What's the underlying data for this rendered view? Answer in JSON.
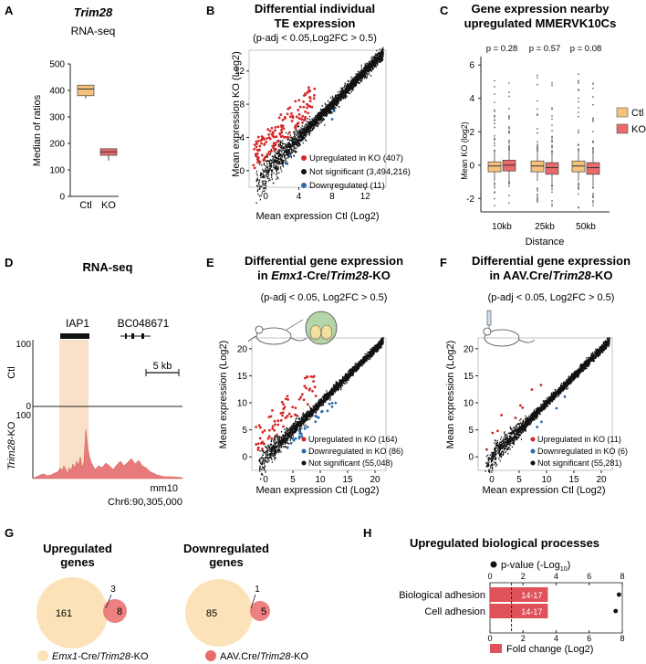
{
  "panel_labels": [
    "A",
    "B",
    "C",
    "D",
    "E",
    "F",
    "G",
    "H"
  ],
  "panelA": {
    "title": "Trim28",
    "subtitle": "RNA-seq",
    "ylabel": "Median of ratios",
    "yticks": [
      "0",
      "100",
      "200",
      "300",
      "400",
      "500"
    ],
    "categories": [
      "Ctl",
      "KO"
    ]
  },
  "panelB": {
    "title1": "Differential individual",
    "title2": "TE expression",
    "subtitle": "(p-adj < 0.05,Log2FC > 0.5)",
    "xlabel": "Mean expression Ctl (Log2)",
    "ylabel": "Mean expression KO (Log2)",
    "xticks": [
      "0",
      "4",
      "8",
      "12"
    ],
    "yticks": [
      "0",
      "4",
      "8",
      "12"
    ],
    "legend": [
      "Upregulated in KO (407)",
      "Not significant (3,494,216)",
      "Downregulated (11)"
    ]
  },
  "panelC": {
    "title1": "Gene expression nearby",
    "title2": "upregulated MMERVK10Cs",
    "pvalues": [
      "p = 0.28",
      "p = 0.57",
      "p = 0.08"
    ],
    "xlabel": "Distance",
    "ylabel": "Mean KO (log2)",
    "xticks": [
      "10kb",
      "25kb",
      "50kb"
    ],
    "yticks": [
      "6",
      "4",
      "2",
      "0",
      "-2"
    ],
    "legend": [
      "Ctl",
      "KO"
    ]
  },
  "panelD": {
    "title": "RNA-seq",
    "gene1": "IAP1",
    "gene2": "BC048671",
    "scale": "5 kb",
    "track_max": "100",
    "track_min": "0",
    "track1": "Ctl",
    "track2_italic": "Trim28",
    "track2_suffix": "-KO",
    "genome": "mm10",
    "coord": "Chr6:90,305,000"
  },
  "panelE": {
    "title1": "Differential gene expression",
    "title2_pre": "in ",
    "title2_it1": "Emx1",
    "title2_mid": "-Cre/",
    "title2_it2": "Trim28",
    "title2_post": "-KO",
    "subtitle": "(p-adj < 0.05, Log2FC > 0.5)",
    "xlabel": "Mean expression Ctl (Log2)",
    "ylabel": "Mean expression (Log2)",
    "xticks": [
      "0",
      "5",
      "10",
      "15",
      "20"
    ],
    "yticks": [
      "0",
      "5",
      "10",
      "15",
      "20"
    ],
    "legend": [
      "Upregulated in KO (164)",
      "Downregulated in KO (86)",
      "Not significant (55,048)"
    ]
  },
  "panelF": {
    "title1": "Differential gene expression",
    "title2_pre": "in AAV.Cre/",
    "title2_it": "Trim28",
    "title2_post": "-KO",
    "subtitle": "(p-adj < 0.05, Log2FC > 0.5)",
    "xlabel": "Mean expression Ctl (Log2)",
    "ylabel": "Mean expression (Log2)",
    "xticks": [
      "0",
      "5",
      "10",
      "15",
      "20"
    ],
    "yticks": [
      "0",
      "5",
      "10",
      "15",
      "20"
    ],
    "legend": [
      "Upregulated in KO (11)",
      "Downregulated in KO (6)",
      "Not significant (55,281)"
    ]
  },
  "panelG": {
    "up_title1": "Upregulated",
    "up_title2": "genes",
    "up_left": "161",
    "up_overlap": "3",
    "up_right": "8",
    "down_title1": "Downregulated",
    "down_title2": "genes",
    "down_left": "85",
    "down_overlap": "1",
    "down_right": "5",
    "legend1_it1": "Emx1",
    "legend1_mid": "-Cre/",
    "legend1_it2": "Trim28",
    "legend1_post": "-KO",
    "legend2_pre": "AAV.Cre/",
    "legend2_it": "Trim28",
    "legend2_post": "-KO"
  },
  "chart_data": [
    {
      "type": "bar",
      "panel": "A",
      "title": "Trim28",
      "categories": [
        "Ctl",
        "KO"
      ],
      "ylabel": "Median of ratios",
      "ylim": [
        0,
        500
      ],
      "boxes": [
        {
          "name": "Ctl",
          "min": 370,
          "q1": 380,
          "median": 405,
          "q3": 420,
          "max": 420
        },
        {
          "name": "KO",
          "min": 135,
          "q1": 155,
          "median": 168,
          "q3": 180,
          "max": 180
        }
      ]
    },
    {
      "type": "bar",
      "panel": "C",
      "title": "Gene expression nearby upregulated MMERVK10Cs",
      "categories": [
        "10kb",
        "25kb",
        "50kb"
      ],
      "ylabel": "Mean KO (log2)",
      "ylim": [
        -2.8,
        6.5
      ],
      "series": [
        {
          "name": "Ctl",
          "median": [
            -0.05,
            -0.05,
            -0.05
          ],
          "q1": [
            -0.4,
            -0.4,
            -0.4
          ],
          "q3": [
            0.2,
            0.25,
            0.25
          ]
        },
        {
          "name": "KO",
          "median": [
            0.0,
            -0.15,
            -0.15
          ],
          "q1": [
            -0.35,
            -0.55,
            -0.55
          ],
          "q3": [
            0.3,
            0.15,
            0.15
          ]
        }
      ],
      "pvalues": [
        0.28,
        0.57,
        0.08
      ]
    },
    {
      "type": "bar",
      "panel": "H",
      "title": "Upregulated biological processes",
      "categories": [
        "Biological adhesion",
        "Cell adhesion"
      ],
      "series": [
        {
          "name": "Fold change (Log2)",
          "values": [
            3.5,
            3.5
          ],
          "labels": [
            "14-17",
            "14-17"
          ]
        },
        {
          "name": "p-value (-Log10)",
          "values": [
            7.8,
            7.6
          ]
        }
      ],
      "xlim": [
        0,
        8
      ],
      "xticks": [
        "0",
        "2",
        "4",
        "6",
        "8"
      ],
      "threshold": 1.3,
      "legend": [
        "p-value (-Log",
        "10",
        ")",
        "Fold change (Log2)"
      ]
    }
  ]
}
